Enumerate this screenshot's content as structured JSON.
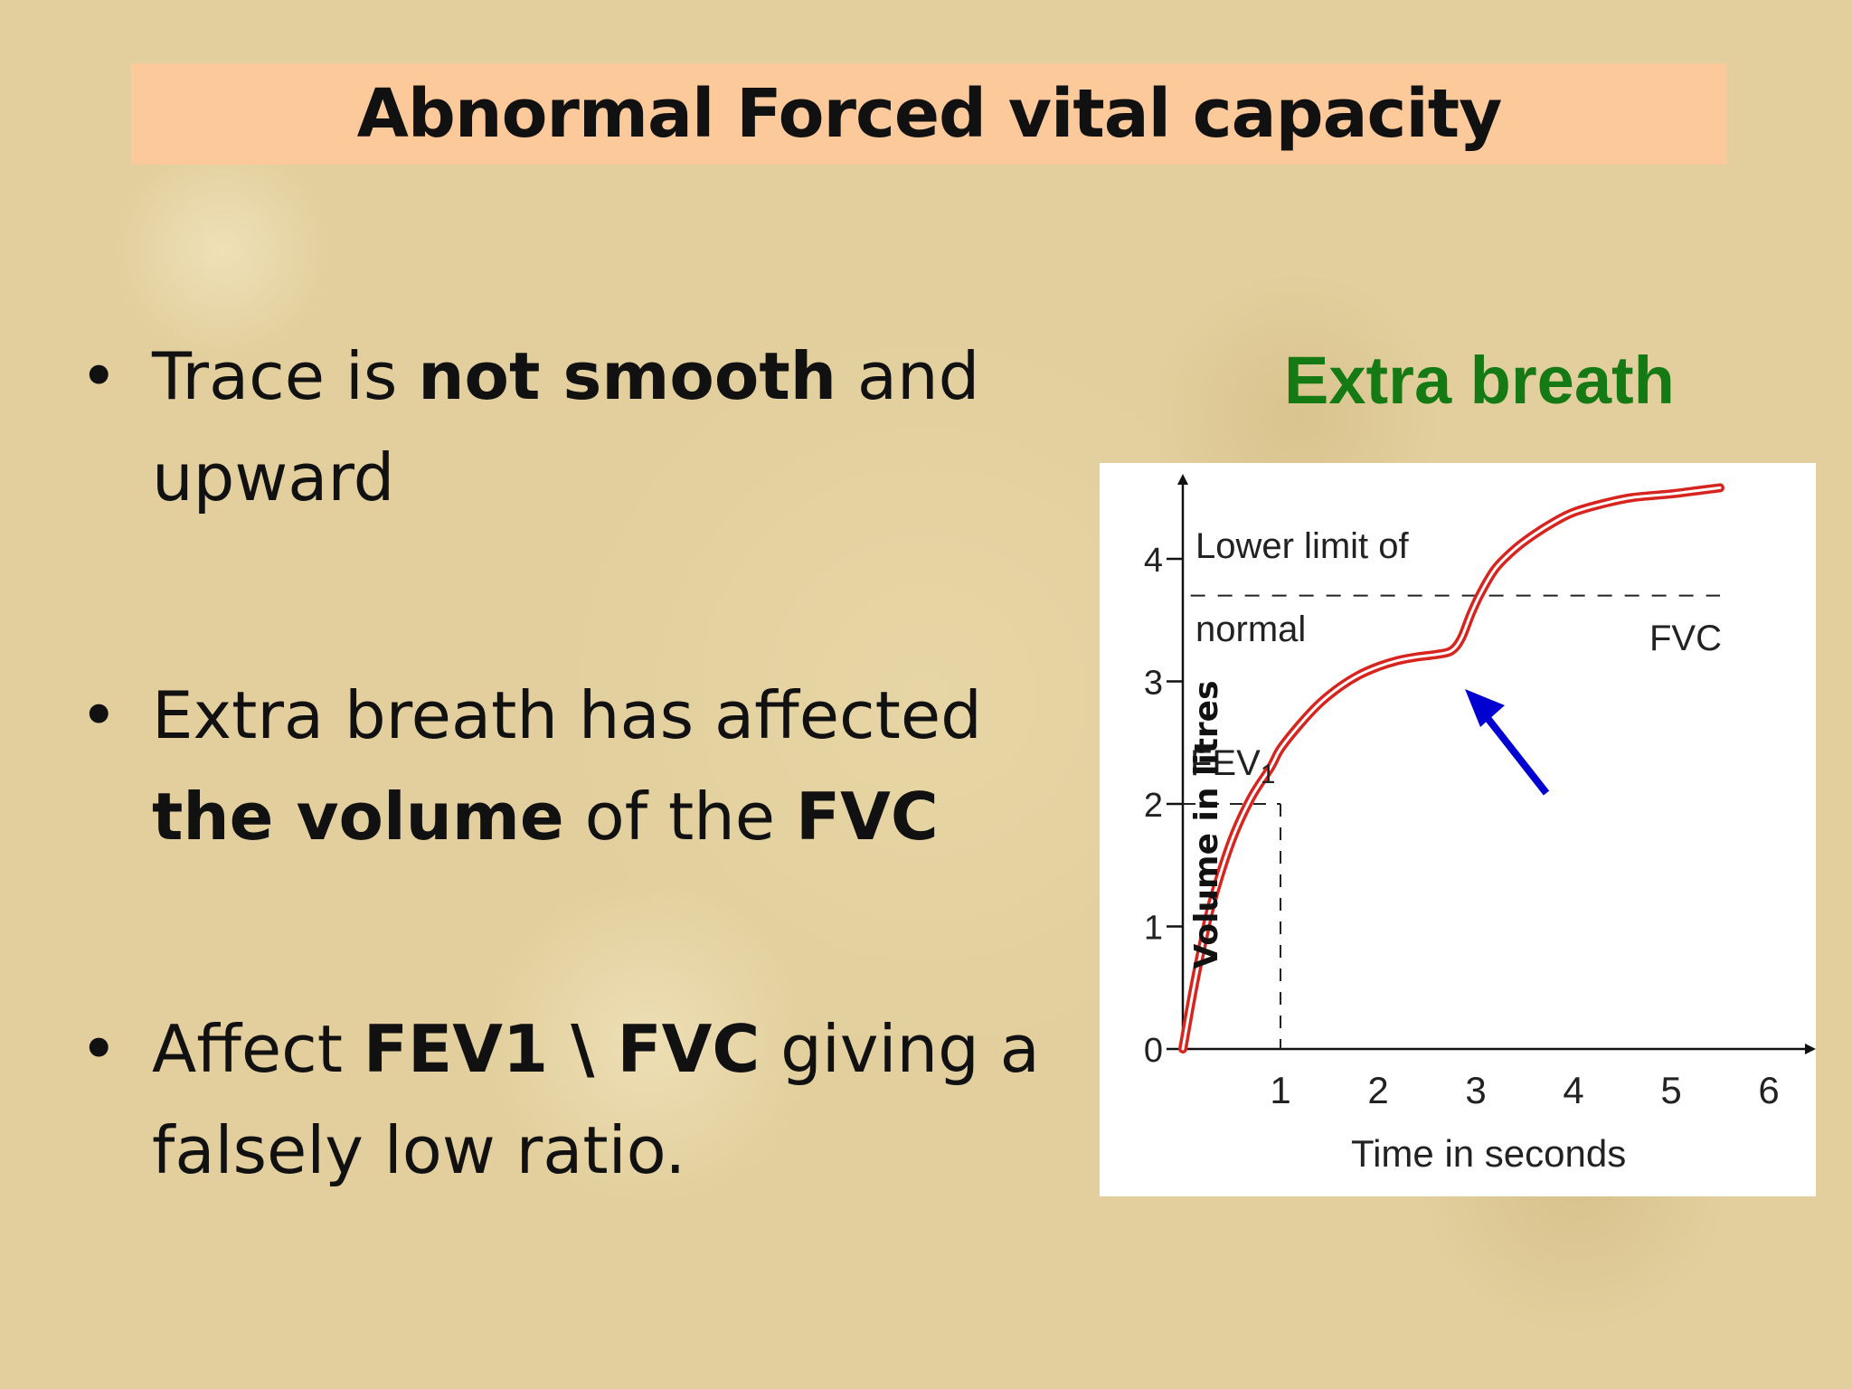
{
  "slide": {
    "title": "Abnormal Forced vital capacity",
    "figure_heading": "Extra breath",
    "bullets": [
      {
        "parts": [
          {
            "t": "Trace is ",
            "b": false
          },
          {
            "t": "not smooth",
            "b": true
          },
          {
            "t": " and upward",
            "b": false
          }
        ]
      },
      {
        "parts": [
          {
            "t": "Extra breath has affected ",
            "b": false
          },
          {
            "t": "the volume",
            "b": true
          },
          {
            "t": " of the ",
            "b": false
          },
          {
            "t": "FVC",
            "b": true
          }
        ]
      },
      {
        "parts": [
          {
            "t": "Affect ",
            "b": false
          },
          {
            "t": "FEV1 \\ FVC",
            "b": true
          },
          {
            "t": " giving a falsely low ratio.",
            "b": false
          }
        ]
      }
    ]
  },
  "chart_data": {
    "type": "line",
    "xlabel": "Time in seconds",
    "ylabel": "Volume in litres",
    "x_ticks": [
      "1",
      "2",
      "3",
      "4",
      "5",
      "6"
    ],
    "y_ticks": [
      "0",
      "1",
      "2",
      "3",
      "4"
    ],
    "xlim": [
      0,
      6.1
    ],
    "ylim": [
      0,
      4.5
    ],
    "series": [
      {
        "x": [
          0,
          0.1,
          0.2,
          0.3,
          0.5,
          0.7,
          0.9,
          1.0,
          1.2,
          1.4,
          1.6,
          1.8,
          2.0,
          2.2,
          2.4,
          2.6,
          2.75,
          2.85,
          2.95,
          3.05,
          3.2,
          3.4,
          3.6,
          3.8,
          4.0,
          4.3,
          4.6,
          5.0,
          5.3,
          5.5
        ],
        "y": [
          0,
          0.45,
          0.85,
          1.2,
          1.7,
          2.05,
          2.3,
          2.45,
          2.65,
          2.82,
          2.95,
          3.05,
          3.12,
          3.17,
          3.2,
          3.22,
          3.25,
          3.35,
          3.55,
          3.72,
          3.92,
          4.08,
          4.2,
          4.3,
          4.38,
          4.45,
          4.5,
          4.53,
          4.56,
          4.58
        ],
        "color": "#d8241e"
      }
    ],
    "reference_lines": [
      {
        "label_lines": [
          "Lower limit of",
          "normal"
        ],
        "y": 3.7,
        "style": "dashed"
      }
    ],
    "annotations": [
      {
        "text": "FVC"
      },
      {
        "text": "FEV",
        "subscript": "1",
        "x": 1,
        "y": 2.0
      }
    ],
    "arrow_color": "#0000d0"
  }
}
